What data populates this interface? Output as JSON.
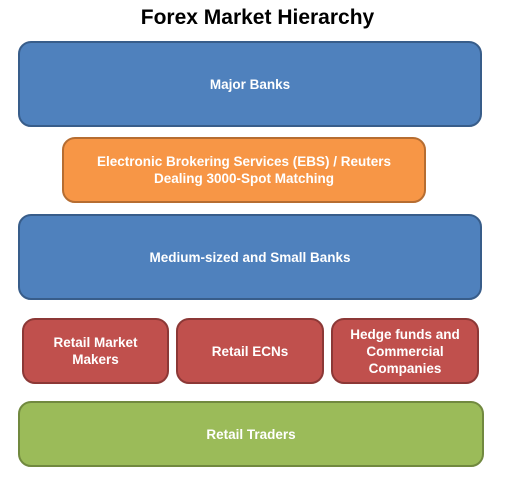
{
  "title": "Forex Market Hierarchy",
  "tiers": {
    "major_banks": "Major Banks",
    "ebs_reuters": "Electronic Brokering Services (EBS) / Reuters\nDealing 3000-Spot Matching",
    "medium_small_banks": "Medium-sized and Small Banks",
    "retail_market_makers": "Retail Market\nMakers",
    "retail_ecns": "Retail ECNs",
    "hedge_funds": "Hedge funds and\nCommercial\nCompanies",
    "retail_traders": "Retail Traders"
  },
  "colors": {
    "blue": "#4f81bd",
    "orange": "#f79646",
    "red": "#c0504d",
    "green": "#9bbb59"
  }
}
